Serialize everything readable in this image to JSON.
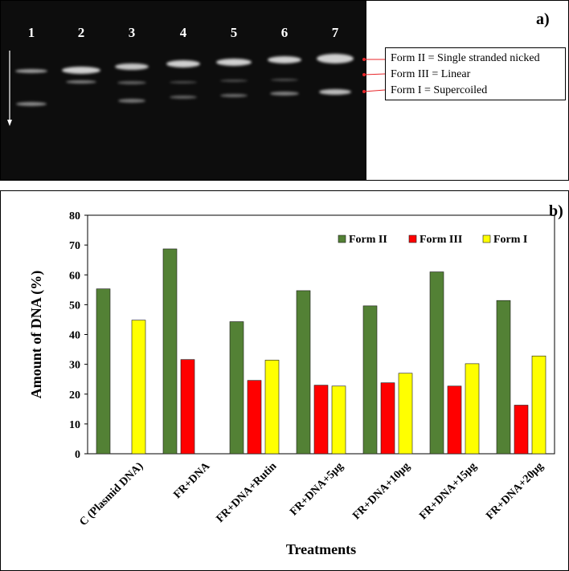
{
  "panel_a": {
    "label": "a)",
    "lanes": [
      "1",
      "2",
      "3",
      "4",
      "5",
      "6",
      "7"
    ],
    "forms": [
      {
        "label": "Form II = Single stranded nicked"
      },
      {
        "label": "Form III = Linear"
      },
      {
        "label": "Form I = Supercoiled"
      }
    ],
    "colors": {
      "marker": "#e8262a",
      "gel_background": "#0d0d0d"
    }
  },
  "panel_b": {
    "label": "b)"
  },
  "chart_data": {
    "type": "bar",
    "xlabel": "Treatments",
    "ylabel": "Amount of DNA (%)",
    "ylim": [
      0,
      80
    ],
    "yticks": [
      0,
      10,
      20,
      30,
      40,
      50,
      60,
      70,
      80
    ],
    "grid": false,
    "legend_position": "top-right",
    "categories": [
      "C (Plasmid DNA)",
      "FR+DNA",
      "FR+DNA+Rutin",
      "FR+DNA+5μg",
      "FR+DNA+10μg",
      "FR+DNA+15μg",
      "FR+DNA+20μg"
    ],
    "series": [
      {
        "name": "Form II",
        "color": "#538135",
        "values": [
          55.3,
          68.7,
          44.3,
          54.7,
          49.6,
          61.0,
          51.4
        ]
      },
      {
        "name": "Form III",
        "color": "#ff0000",
        "values": [
          0,
          31.6,
          24.6,
          23.0,
          23.8,
          22.7,
          16.3
        ]
      },
      {
        "name": "Form I",
        "color": "#ffff00",
        "values": [
          44.8,
          0,
          31.4,
          22.7,
          27.0,
          30.2,
          32.8
        ]
      }
    ]
  }
}
